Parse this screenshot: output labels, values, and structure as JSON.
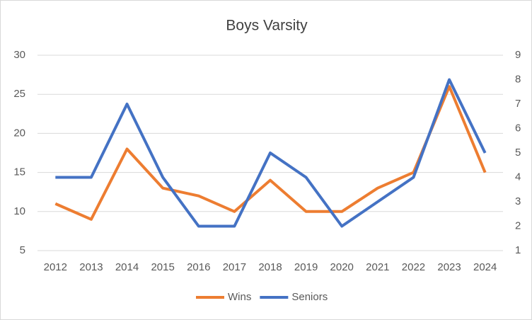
{
  "chart_data": {
    "type": "line",
    "title": "Boys Varsity",
    "categories": [
      "2012",
      "2013",
      "2014",
      "2015",
      "2016",
      "2017",
      "2018",
      "2019",
      "2020",
      "2021",
      "2022",
      "2023",
      "2024"
    ],
    "series": [
      {
        "name": "Wins",
        "color": "#ed7d31",
        "values": [
          11,
          9,
          18,
          13,
          12,
          10,
          14,
          10,
          10,
          13,
          15,
          26,
          15
        ]
      },
      {
        "name": "Seniors",
        "color": "#4472c4",
        "axis": "y2",
        "values": [
          4,
          4,
          7,
          4,
          2,
          2,
          5,
          4,
          2,
          3,
          4,
          8,
          5
        ]
      }
    ],
    "ylim": [
      5,
      30
    ],
    "yticks": [
      5,
      10,
      15,
      20,
      25,
      30
    ],
    "y2lim": [
      1,
      9
    ],
    "y2ticks": [
      1,
      2,
      3,
      4,
      5,
      6,
      7,
      8,
      9
    ],
    "grid": true,
    "legend": "bottom"
  }
}
